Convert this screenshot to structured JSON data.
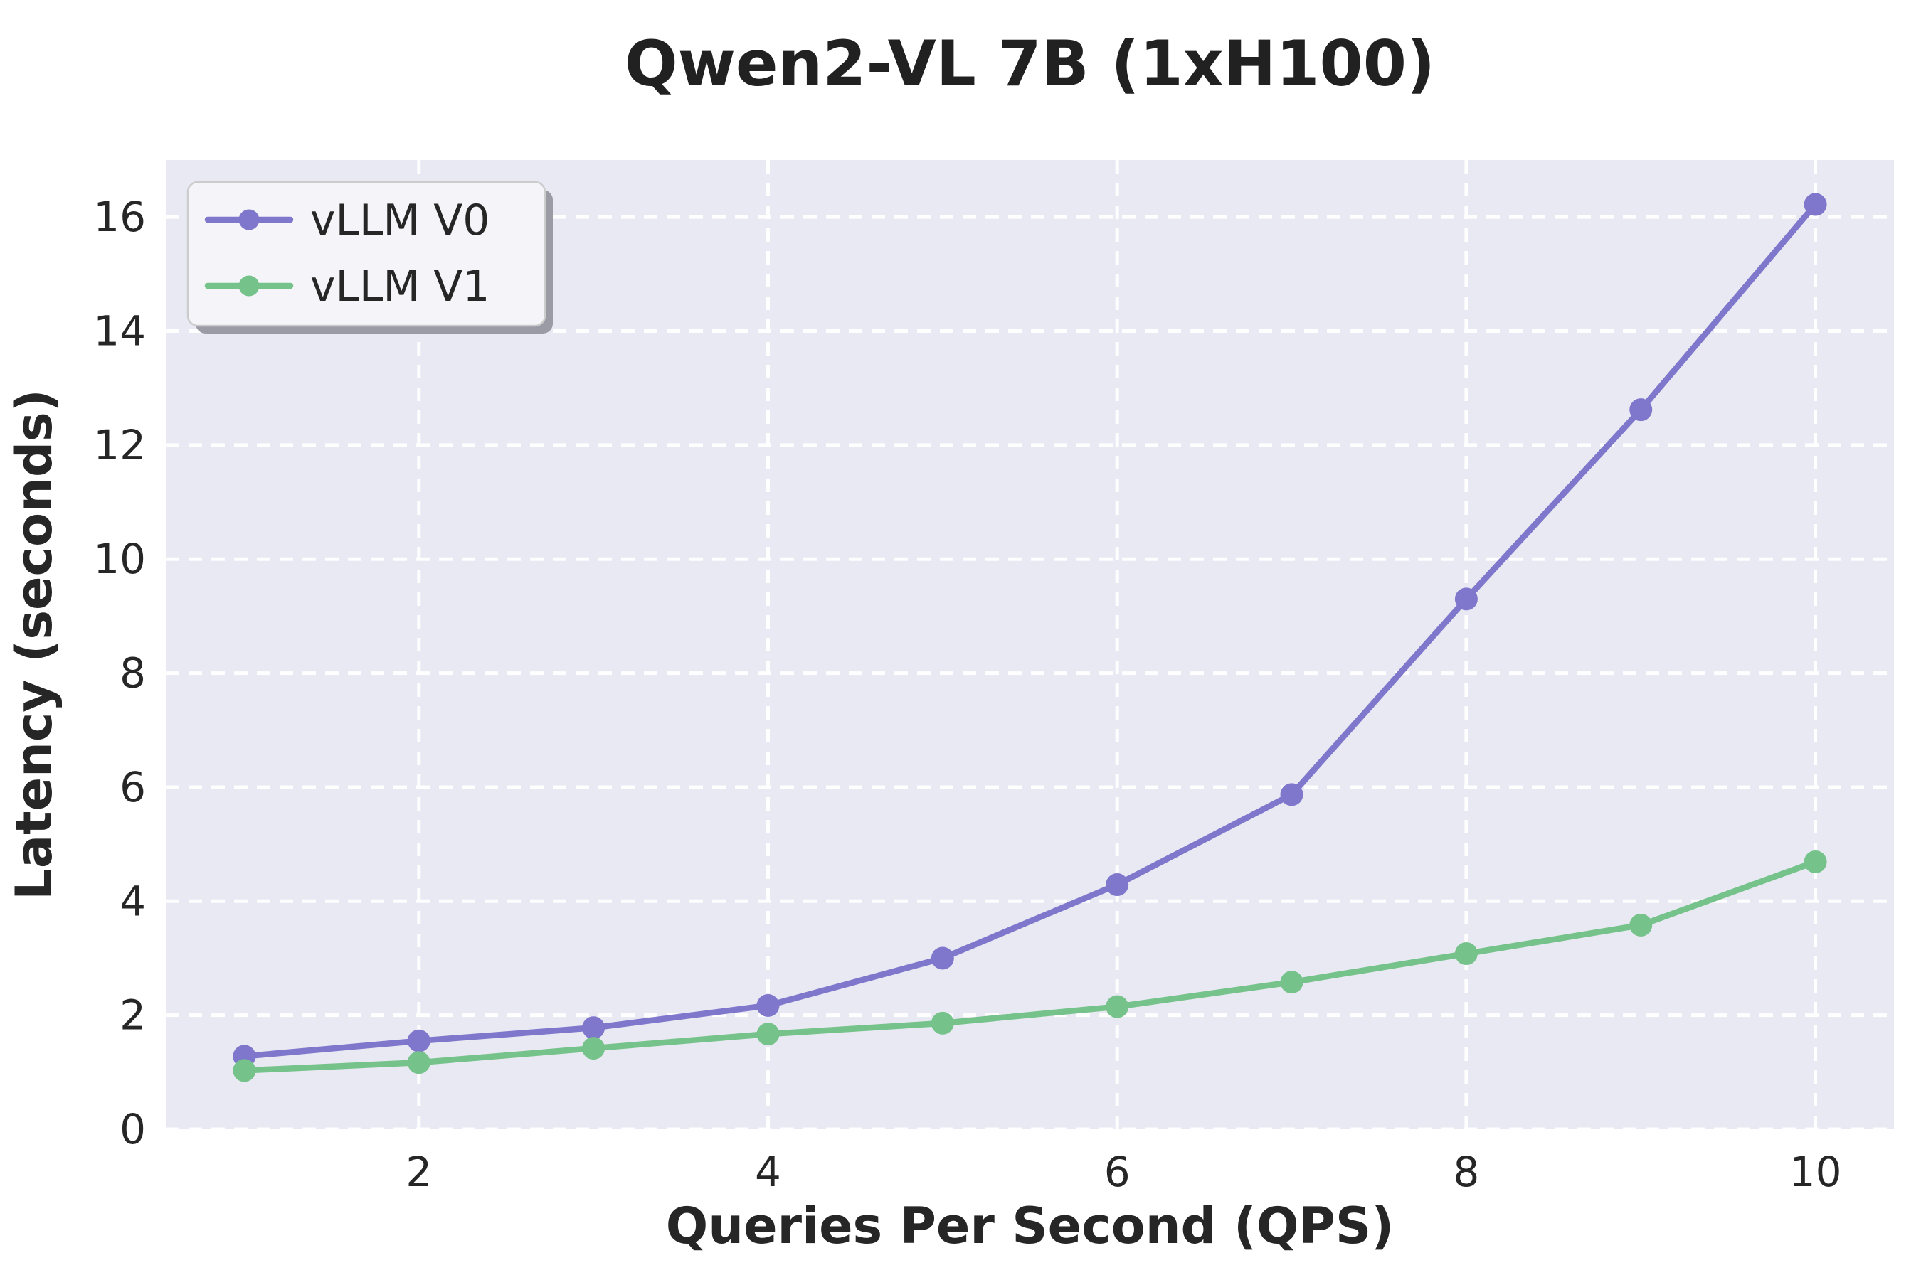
{
  "chart_data": {
    "type": "line",
    "title": "Qwen2-VL 7B (1xH100)",
    "xlabel": "Queries Per Second (QPS)",
    "ylabel": "Latency (seconds)",
    "x": [
      1,
      2,
      3,
      4,
      5,
      6,
      7,
      8,
      9,
      10
    ],
    "series": [
      {
        "name": "vLLM V0",
        "color": "#7F77CC",
        "values": [
          1.28,
          1.55,
          1.78,
          2.17,
          3.0,
          4.29,
          5.87,
          9.3,
          12.62,
          16.22
        ]
      },
      {
        "name": "vLLM V1",
        "color": "#76C28B",
        "values": [
          1.03,
          1.17,
          1.42,
          1.67,
          1.86,
          2.15,
          2.58,
          3.08,
          3.58,
          4.69
        ]
      }
    ],
    "xlim": [
      0.55,
      10.45
    ],
    "ylim": [
      0,
      17
    ],
    "xticks": [
      2,
      4,
      6,
      8,
      10
    ],
    "yticks": [
      0,
      2,
      4,
      6,
      8,
      10,
      12,
      14,
      16
    ],
    "grid": true,
    "grid_style": "dashed",
    "legend_position": "upper left",
    "style": {
      "figure_bg": "#FFFFFF",
      "axes_bg": "#E8E9F2",
      "grid_color": "#FFFFFF",
      "text_color": "#262626",
      "legend_bg": "#F4F4F9",
      "legend_border": "#CCCCCC",
      "legend_shadow": "#9B9BA6"
    }
  }
}
